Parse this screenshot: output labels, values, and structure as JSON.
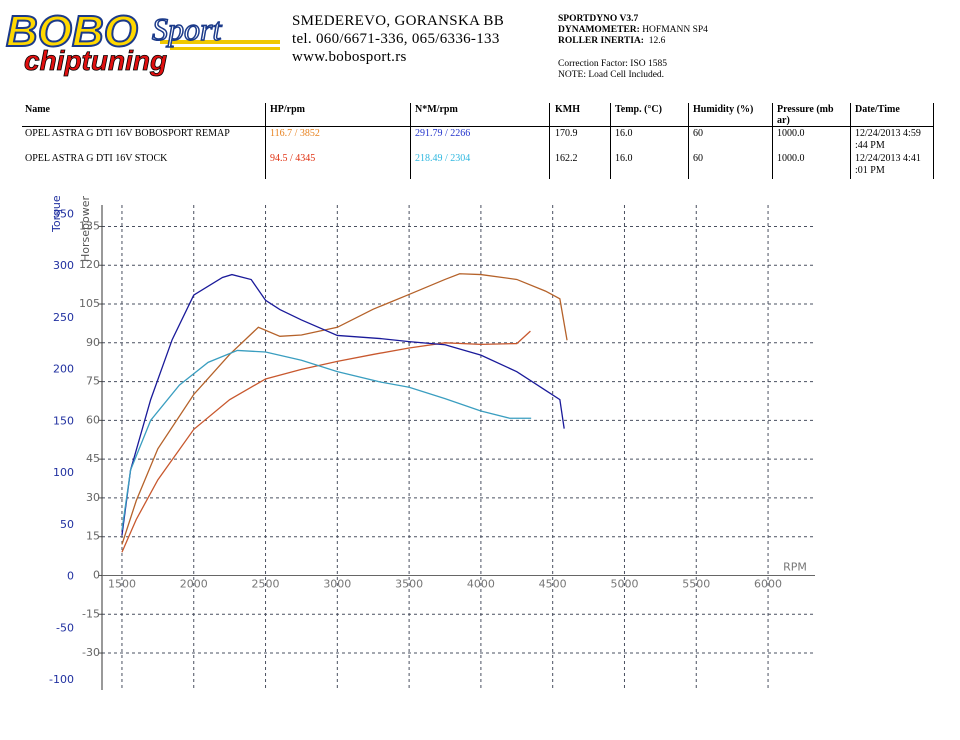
{
  "header": {
    "logo": {
      "brand": "BOBO",
      "sport": "Sport",
      "tagline": "chiptuning"
    },
    "address": [
      "SMEDEREVO, GORANSKA BB",
      "tel. 060/6671-336, 065/6336-133",
      "www.bobosport.rs"
    ],
    "info": {
      "software": "SPORTDYNO V3.7",
      "dynamometer": {
        "label": "DYNAMOMETER:",
        "value": "HOFMANN SP4"
      },
      "inertia": {
        "label": "ROLLER INERTIA:",
        "value": "12.6"
      },
      "correction": "Correction Factor: ISO 1585",
      "note": "NOTE: Load Cell Included."
    }
  },
  "table": {
    "columns": [
      "Name",
      "HP/rpm",
      "N*M/rpm",
      "KMH",
      "Temp. (°C)",
      "Humidity (%)",
      "Pressure (mb ar)",
      "Date/Time"
    ],
    "rows": [
      [
        "OPEL ASTRA G DTI 16V BOBOSPORT REMAP",
        "116.7 / 3852",
        "291.79 / 2266",
        "170.9",
        "16.0",
        "60",
        "1000.0",
        "12/24/2013 4:59 :44 PM"
      ],
      [
        "OPEL ASTRA G DTI 16V STOCK",
        "94.5 / 4345",
        "218.49 / 2304",
        "162.2",
        "16.0",
        "60",
        "1000.0",
        "12/24/2013 4:41 :01 PM"
      ]
    ],
    "cell_colors": [
      {
        "row": 0,
        "col": 1,
        "color": "#e8821e"
      },
      {
        "row": 0,
        "col": 2,
        "color": "#2233cc"
      },
      {
        "row": 1,
        "col": 1,
        "color": "#e03010"
      },
      {
        "row": 1,
        "col": 2,
        "color": "#30b8e0"
      }
    ]
  },
  "chart_data": {
    "type": "line",
    "x_label": "RPM",
    "y_label": "Horsepower",
    "y2_label": "Torque",
    "grid": true,
    "xlim": [
      1361,
      6327
    ],
    "xticks": [
      1500,
      2000,
      2500,
      3000,
      3500,
      4000,
      4500,
      5000,
      5500,
      6000
    ],
    "ylim": [
      -44.3,
      143.3
    ],
    "yticks": [
      135,
      120,
      105,
      90,
      75,
      60,
      45,
      30,
      15,
      0,
      -15,
      -30
    ],
    "y2lim": [
      -109.5,
      359
    ],
    "y2ticks": [
      350,
      300,
      250,
      200,
      150,
      100,
      50,
      0,
      -50,
      -100
    ],
    "series": [
      {
        "color": "#b5622a",
        "x": [
          1500,
          1600,
          1750,
          2000,
          2250,
          2450,
          2600,
          2750,
          3000,
          3250,
          3500,
          3750,
          3852,
          4000,
          4250,
          4450,
          4550,
          4600
        ],
        "values": [
          12,
          29,
          49,
          70,
          85.5,
          96,
          92.5,
          93,
          96,
          103,
          108.7,
          114.5,
          116.7,
          116.4,
          114.5,
          110,
          107,
          91
        ]
      },
      {
        "color": "#c8582e",
        "x": [
          1500,
          1600,
          1750,
          2000,
          2250,
          2500,
          2750,
          3000,
          3250,
          3500,
          3750,
          4000,
          4250,
          4345
        ],
        "values": [
          9,
          21.7,
          37,
          56.5,
          68,
          76,
          79.7,
          82.8,
          85.5,
          88,
          90,
          89.4,
          89.7,
          94.5
        ]
      },
      {
        "color": "#1a1a9a",
        "axis": "y2",
        "x": [
          1500,
          1560,
          1700,
          1850,
          2000,
          2200,
          2266,
          2400,
          2500,
          2600,
          2750,
          3000,
          3300,
          3500,
          3750,
          4000,
          4250,
          4450,
          4550,
          4580
        ],
        "values": [
          40,
          103,
          171,
          229,
          272,
          289,
          291.79,
          287,
          267,
          258,
          248,
          233,
          230,
          227,
          224,
          214,
          198,
          180,
          171,
          143
        ]
      },
      {
        "color": "#3a9ec0",
        "axis": "y2",
        "x": [
          1500,
          1560,
          1700,
          1900,
          2100,
          2304,
          2500,
          2750,
          3000,
          3300,
          3500,
          3750,
          4000,
          4200,
          4350
        ],
        "values": [
          45,
          103,
          151,
          185,
          207,
          218.49,
          217,
          209,
          198,
          188,
          183,
          172,
          160,
          153,
          153
        ]
      }
    ]
  }
}
